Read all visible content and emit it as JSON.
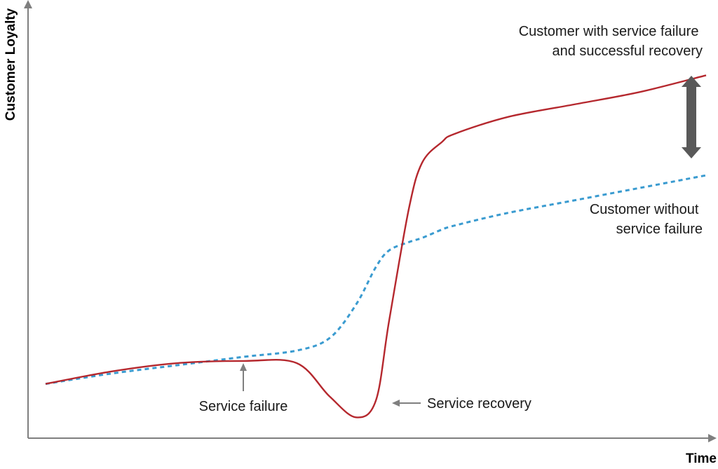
{
  "chart_data": {
    "type": "line",
    "title": "",
    "xlabel": "Time",
    "ylabel": "Customer Loyalty",
    "grid": false,
    "x_ticks": false,
    "y_ticks": false,
    "xlim": [
      0,
      100
    ],
    "ylim": [
      0,
      100
    ],
    "series": [
      {
        "key": "recovery",
        "color": "#b5282e",
        "style": "solid",
        "x": [
          0,
          10,
          20,
          30,
          38,
          43,
          47,
          50,
          52,
          55,
          57,
          60,
          62,
          70,
          80,
          90,
          100
        ],
        "y": [
          13,
          16,
          18,
          18.5,
          18,
          10,
          5,
          9,
          28,
          55,
          66,
          71,
          73,
          77,
          80,
          83,
          87
        ]
      },
      {
        "key": "no_failure",
        "color": "#3a9bd0",
        "style": "dashed",
        "x": [
          0,
          10,
          20,
          30,
          38,
          43,
          47,
          50,
          52,
          55,
          57,
          60,
          62,
          70,
          80,
          90,
          100
        ],
        "y": [
          13,
          15.5,
          17.5,
          19.5,
          21,
          24,
          32,
          41,
          45,
          47,
          48,
          50,
          51,
          54,
          57,
          60,
          63
        ]
      }
    ],
    "annotations": [
      {
        "key": "top_label",
        "lines": [
          "Customer with service failure",
          "and successful recovery"
        ]
      },
      {
        "key": "mid_label",
        "lines": [
          "Customer without",
          "service failure"
        ]
      },
      {
        "key": "failure",
        "lines": [
          "Service failure"
        ]
      },
      {
        "key": "recovery",
        "lines": [
          "Service recovery"
        ]
      }
    ],
    "marker_color": "#595959",
    "axis_color": "#7f7f7f"
  }
}
